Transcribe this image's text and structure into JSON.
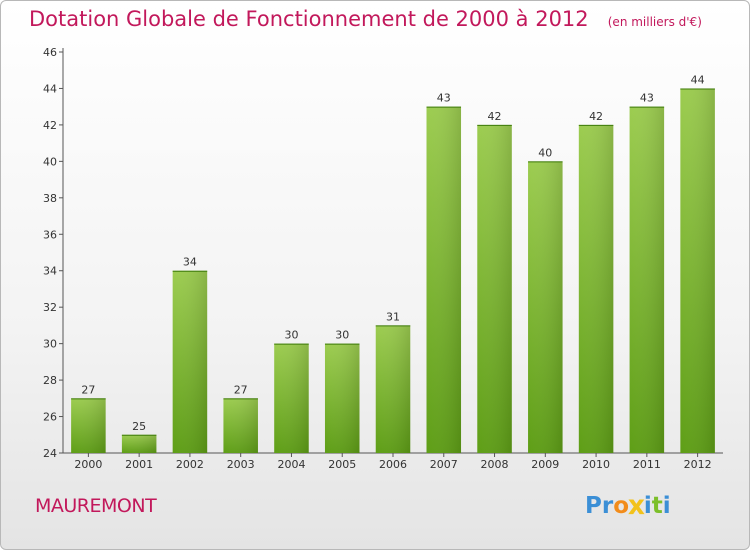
{
  "title": "Dotation Globale de Fonctionnement de 2000 à 2012",
  "unit": "(en milliers d'€)",
  "commune": "MAUREMONT",
  "logo": {
    "letters": [
      "P",
      "r",
      "o",
      "x",
      "i",
      "t",
      "i"
    ],
    "colors": [
      "#3b8fd6",
      "#3b8fd6",
      "#f28c1b",
      "#f2c21b",
      "#3b8fd6",
      "#7cbf2a",
      "#3b8fd6"
    ]
  },
  "colors": {
    "title": "#c2185b",
    "bar_light": "#9ccc50",
    "bar_dark": "#5e9e16",
    "axis": "#555555"
  },
  "chart_data": {
    "type": "bar",
    "categories": [
      "2000",
      "2001",
      "2002",
      "2003",
      "2004",
      "2005",
      "2006",
      "2007",
      "2008",
      "2009",
      "2010",
      "2011",
      "2012"
    ],
    "values": [
      27,
      25,
      34,
      27,
      30,
      30,
      31,
      43,
      42,
      40,
      42,
      43,
      44
    ],
    "ylim": [
      24,
      46
    ],
    "yticks": [
      24,
      26,
      28,
      30,
      32,
      34,
      36,
      38,
      40,
      42,
      44,
      46
    ],
    "grid": false
  }
}
